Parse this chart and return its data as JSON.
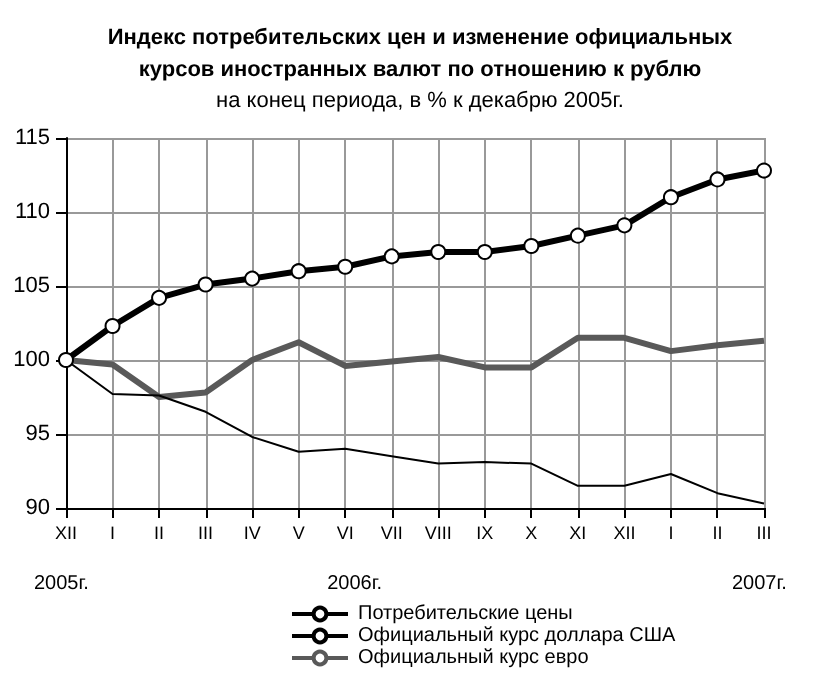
{
  "chart_data": {
    "type": "line",
    "title": "Индекс потребительских цен и изменение официальных\nкурсов иностранных валют по отношению к рублю",
    "subtitle": "на конец периода, в % к декабрю 2005г.",
    "categories": [
      "XII",
      "I",
      "II",
      "III",
      "IV",
      "V",
      "VI",
      "VII",
      "VIII",
      "IX",
      "X",
      "XI",
      "XII",
      "I",
      "II",
      "III"
    ],
    "series": [
      {
        "name": "Потребительские цены",
        "color": "#000000",
        "marker": "circle",
        "values": [
          100,
          102.3,
          104.2,
          105.1,
          105.5,
          106.0,
          106.3,
          107.0,
          107.3,
          107.3,
          107.7,
          108.4,
          109.1,
          111.0,
          112.2,
          112.8
        ]
      },
      {
        "name": "Официальный курс доллара США",
        "color": "#000000",
        "marker": "none",
        "values": [
          100,
          97.7,
          97.6,
          96.5,
          94.8,
          93.8,
          94.0,
          93.5,
          93.0,
          93.1,
          93.0,
          91.5,
          91.5,
          92.3,
          91.0,
          90.3
        ]
      },
      {
        "name": "Официальный курс евро",
        "color": "#595959",
        "marker": "none",
        "values": [
          100,
          99.7,
          97.5,
          97.8,
          100,
          101.2,
          99.6,
          99.9,
          100.2,
          99.5,
          99.5,
          101.5,
          101.5,
          100.6,
          101.0,
          101.3
        ]
      }
    ],
    "annotations": [
      "2005г.",
      "2006г.",
      "2007г."
    ],
    "ylim": [
      90,
      115
    ],
    "yticks": [
      90,
      95,
      100,
      105,
      110,
      115
    ],
    "grid": true,
    "legend": "bottom"
  }
}
